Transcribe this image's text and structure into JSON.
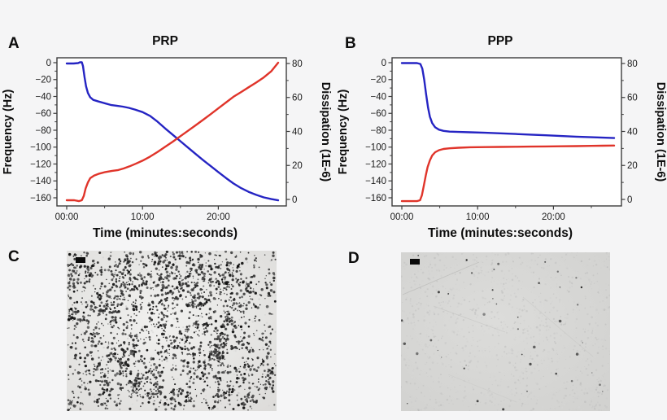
{
  "figure": {
    "background": "#f5f5f6",
    "plot_background": "#ffffff",
    "axis_color": "#3c3c3c"
  },
  "panels": {
    "a": {
      "label": "A"
    },
    "b": {
      "label": "B"
    },
    "c": {
      "label": "C"
    },
    "d": {
      "label": "D"
    }
  },
  "chart_data": [
    {
      "panel": "A",
      "type": "line",
      "title": "PRP",
      "xlabel": "Time (minutes:seconds)",
      "x_axis": {
        "tick_labels": [
          "00:00",
          "10:00",
          "20:00"
        ],
        "tick_values": [
          0,
          10,
          20
        ],
        "minor_tick_values": [
          5,
          15,
          25
        ],
        "range_minutes": [
          0,
          29
        ]
      },
      "left_axis": {
        "label": "Frequency (Hz)",
        "tick_values": [
          0,
          -20,
          -40,
          -60,
          -80,
          -100,
          -120,
          -140,
          -160
        ],
        "minor_tick_values": [
          -10,
          -30,
          -50,
          -70,
          -90,
          -110,
          -130,
          -150
        ],
        "range": [
          6,
          -170
        ]
      },
      "right_axis": {
        "label": "Dissipation (1E-6)",
        "tick_values": [
          80,
          60,
          40,
          20,
          0
        ],
        "minor_tick_values": [
          70,
          50,
          30,
          10
        ],
        "range": [
          84,
          -4
        ]
      },
      "series": [
        {
          "name": "Frequency",
          "axis": "left",
          "color": "#2524c3",
          "points": [
            [
              0,
              -1
            ],
            [
              0.9,
              -1
            ],
            [
              1.5,
              -0.5
            ],
            [
              1.75,
              0.5
            ],
            [
              2.0,
              0.5
            ],
            [
              2.15,
              -4
            ],
            [
              2.35,
              -17
            ],
            [
              2.55,
              -28
            ],
            [
              2.8,
              -36
            ],
            [
              3.1,
              -41
            ],
            [
              3.5,
              -44
            ],
            [
              4.2,
              -46
            ],
            [
              5.0,
              -48
            ],
            [
              5.8,
              -50
            ],
            [
              6.6,
              -51
            ],
            [
              7.4,
              -52
            ],
            [
              8.2,
              -53.5
            ],
            [
              9.0,
              -55.5
            ],
            [
              10.0,
              -58.5
            ],
            [
              11.0,
              -63
            ],
            [
              12.0,
              -70
            ],
            [
              13.0,
              -78
            ],
            [
              14.0,
              -85.5
            ],
            [
              15.0,
              -93
            ],
            [
              16.0,
              -100.5
            ],
            [
              17.0,
              -108
            ],
            [
              18.0,
              -115.5
            ],
            [
              19.0,
              -122.5
            ],
            [
              20.0,
              -129.5
            ],
            [
              21.0,
              -136.5
            ],
            [
              22.0,
              -143
            ],
            [
              23.0,
              -148.5
            ],
            [
              24.0,
              -153
            ],
            [
              25.0,
              -156.5
            ],
            [
              26.0,
              -159.5
            ],
            [
              27.0,
              -161.5
            ],
            [
              27.9,
              -163
            ]
          ]
        },
        {
          "name": "Dissipation",
          "axis": "right",
          "color": "#e0342a",
          "points": [
            [
              0,
              -0.5
            ],
            [
              1.0,
              -0.5
            ],
            [
              1.6,
              -1
            ],
            [
              2.0,
              -0.5
            ],
            [
              2.25,
              2
            ],
            [
              2.5,
              6.5
            ],
            [
              2.8,
              10
            ],
            [
              3.1,
              12.5
            ],
            [
              3.6,
              14
            ],
            [
              4.3,
              15.2
            ],
            [
              5.0,
              16
            ],
            [
              6.0,
              16.8
            ],
            [
              6.8,
              17.3
            ],
            [
              7.5,
              18.2
            ],
            [
              8.3,
              19.5
            ],
            [
              9.1,
              21
            ],
            [
              10.0,
              22.8
            ],
            [
              11.0,
              25.2
            ],
            [
              12.0,
              28
            ],
            [
              13.0,
              31
            ],
            [
              14.0,
              34
            ],
            [
              15.0,
              37.2
            ],
            [
              16.0,
              40.4
            ],
            [
              17.0,
              43.6
            ],
            [
              18.0,
              46.9
            ],
            [
              19.0,
              50.2
            ],
            [
              20.0,
              53.6
            ],
            [
              21.0,
              57
            ],
            [
              22.0,
              60.4
            ],
            [
              23.0,
              63.2
            ],
            [
              24.0,
              66
            ],
            [
              25.0,
              68.8
            ],
            [
              26.0,
              71.8
            ],
            [
              27.0,
              75.5
            ],
            [
              27.9,
              80.5
            ]
          ]
        }
      ]
    },
    {
      "panel": "B",
      "type": "line",
      "title": "PPP",
      "xlabel": "Time (minutes:seconds)",
      "x_axis": {
        "tick_labels": [
          "00:00",
          "10:00",
          "20:00"
        ],
        "tick_values": [
          0,
          10,
          20
        ],
        "minor_tick_values": [
          5,
          15,
          25
        ],
        "range_minutes": [
          0,
          29
        ]
      },
      "left_axis": {
        "label": "Frequency (Hz)",
        "tick_values": [
          0,
          -20,
          -40,
          -60,
          -80,
          -100,
          -120,
          -140,
          -160
        ],
        "minor_tick_values": [
          -10,
          -30,
          -50,
          -70,
          -90,
          -110,
          -130,
          -150
        ],
        "range": [
          6,
          -170
        ]
      },
      "right_axis": {
        "label": "Dissipation (1E-6)",
        "tick_values": [
          80,
          60,
          40,
          20,
          0
        ],
        "minor_tick_values": [
          70,
          50,
          30,
          10
        ],
        "range": [
          84,
          -4
        ]
      },
      "series": [
        {
          "name": "Frequency",
          "axis": "left",
          "color": "#2524c3",
          "points": [
            [
              0,
              -0.5
            ],
            [
              1.0,
              -0.5
            ],
            [
              2.0,
              -0.5
            ],
            [
              2.45,
              -1.5
            ],
            [
              2.7,
              -7
            ],
            [
              2.95,
              -20
            ],
            [
              3.2,
              -37
            ],
            [
              3.45,
              -53
            ],
            [
              3.7,
              -64
            ],
            [
              4.0,
              -71.5
            ],
            [
              4.4,
              -76.5
            ],
            [
              4.9,
              -79.3
            ],
            [
              5.5,
              -80.8
            ],
            [
              6.3,
              -81.6
            ],
            [
              7.5,
              -82
            ],
            [
              9.0,
              -82.4
            ],
            [
              11.0,
              -83
            ],
            [
              13.0,
              -83.7
            ],
            [
              15.0,
              -84.4
            ],
            [
              17.0,
              -85.2
            ],
            [
              19.0,
              -86
            ],
            [
              21.0,
              -86.8
            ],
            [
              23.0,
              -87.6
            ],
            [
              25.0,
              -88.3
            ],
            [
              26.5,
              -88.8
            ],
            [
              28.0,
              -89.3
            ]
          ]
        },
        {
          "name": "Dissipation",
          "axis": "right",
          "color": "#e0342a",
          "points": [
            [
              0,
              -1
            ],
            [
              1.0,
              -1
            ],
            [
              2.0,
              -1
            ],
            [
              2.4,
              -0.5
            ],
            [
              2.65,
              2.5
            ],
            [
              2.9,
              8
            ],
            [
              3.15,
              14
            ],
            [
              3.4,
              19
            ],
            [
              3.7,
              23
            ],
            [
              4.0,
              25.8
            ],
            [
              4.4,
              27.8
            ],
            [
              4.9,
              29
            ],
            [
              5.5,
              29.7
            ],
            [
              6.3,
              30.1
            ],
            [
              7.5,
              30.4
            ],
            [
              9.0,
              30.7
            ],
            [
              11.0,
              30.8
            ],
            [
              13.0,
              30.9
            ],
            [
              15.0,
              31.0
            ],
            [
              17.0,
              31.1
            ],
            [
              19.0,
              31.2
            ],
            [
              21.0,
              31.3
            ],
            [
              23.0,
              31.4
            ],
            [
              25.0,
              31.5
            ],
            [
              26.5,
              31.6
            ],
            [
              28.0,
              31.7
            ]
          ]
        }
      ]
    }
  ],
  "micrographs": {
    "c": {
      "panel": "C",
      "density": "dense",
      "scale_bar": true
    },
    "d": {
      "panel": "D",
      "density": "sparse",
      "scale_bar": true
    }
  }
}
